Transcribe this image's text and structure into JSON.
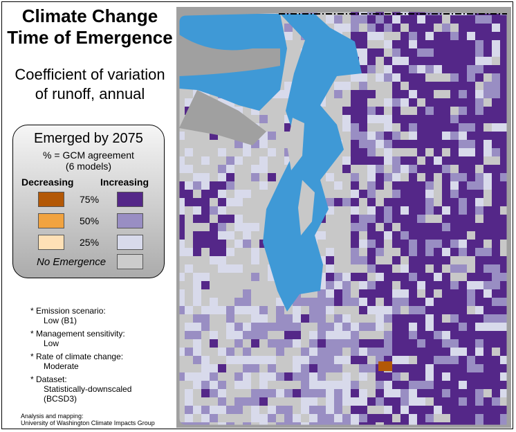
{
  "title_lines": [
    "Climate Change",
    "Time of Emergence"
  ],
  "subtitle_lines": [
    "Coefficient of variation",
    "of runoff, annual"
  ],
  "legend": {
    "heading": "Emerged by 2075",
    "subheading_lines": [
      "% = GCM agreement",
      "(6 models)"
    ],
    "decreasing_label": "Decreasing",
    "increasing_label": "Increasing",
    "levels": [
      {
        "label": "75%",
        "decreasing_color": "#b35806",
        "increasing_color": "#542788"
      },
      {
        "label": "50%",
        "decreasing_color": "#f1a340",
        "increasing_color": "#998ec3"
      },
      {
        "label": "25%",
        "decreasing_color": "#fee0b6",
        "increasing_color": "#d8daeb"
      }
    ],
    "no_emergence_label": "No Emergence",
    "no_emergence_color": "#cccccc"
  },
  "notes": [
    {
      "label": "* Emission scenario:",
      "value": "Low (B1)"
    },
    {
      "label": "* Management sensitivity:",
      "value": "Low"
    },
    {
      "label": "* Rate of climate change:",
      "value": "Moderate"
    },
    {
      "label": "* Dataset:",
      "value_lines": [
        "Statistically-downscaled",
        "(BCSD3)"
      ]
    }
  ],
  "credit_lines": [
    "Analysis and mapping:",
    "University of Washington Climate Impacts Group"
  ],
  "map_colors": {
    "water": "#3f99d6",
    "outside_region": "#a0a0a0",
    "land_no_data": "#c8c8c8",
    "boundary": "#000000"
  }
}
